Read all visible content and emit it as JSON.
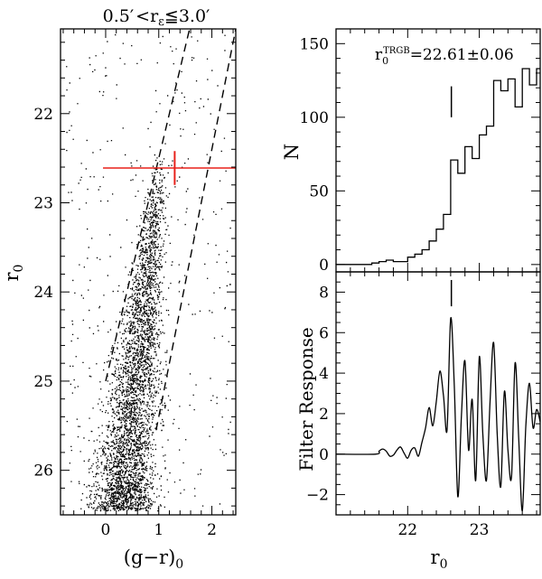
{
  "chart_data": [
    {
      "type": "scatter",
      "panel": "cmd",
      "title_parts": {
        "lo": "0.5′",
        "lt": "<",
        "r": "r",
        "sub": "ε",
        "le": "≦",
        "hi": "3.0′"
      },
      "xlabel": {
        "main": "(g−r)",
        "sub": "0"
      },
      "ylabel": {
        "main": "r",
        "sub": "0"
      },
      "xlim": [
        -0.85,
        2.45
      ],
      "ylim": [
        26.5,
        21.05
      ],
      "xticks": [
        0,
        1,
        2
      ],
      "xtick_labels": [
        "0",
        "1",
        "2"
      ],
      "yticks": [
        22,
        23,
        24,
        25,
        26
      ],
      "ytick_labels": [
        "22",
        "23",
        "24",
        "25",
        "26"
      ],
      "n_points": 9000,
      "rgb_locus": {
        "x_at_r22_6": 0.99,
        "x_at_r26": 0.38,
        "x_scatter_bright": 0.09,
        "x_scatter_faint": 0.28
      },
      "dashed_lines": [
        {
          "x": [
            0.0,
            1.58
          ],
          "y": [
            25.0,
            21.05
          ]
        },
        {
          "x": [
            0.95,
            2.45
          ],
          "y": [
            25.55,
            21.05
          ]
        }
      ],
      "trgb_line": {
        "r0": 22.61,
        "x_range": [
          -0.05,
          2.45
        ],
        "color": "#e8201a"
      },
      "trgb_marker": {
        "x": 1.3,
        "r_range": [
          22.42,
          22.8
        ],
        "color": "#e8201a"
      }
    },
    {
      "type": "step",
      "panel": "luminosity-function",
      "ylabel": "N",
      "annotation": {
        "r": "r",
        "sub": "0",
        "sup": "TRGB",
        "value": "=22.61±0.06"
      },
      "xlim": [
        21.0,
        23.85
      ],
      "ylim": [
        -5,
        160
      ],
      "yticks": [
        0,
        50,
        100,
        150
      ],
      "ytick_labels": [
        "0",
        "50",
        "100",
        "150"
      ],
      "bin_edges": [
        21.0,
        21.1,
        21.2,
        21.3,
        21.4,
        21.5,
        21.6,
        21.7,
        21.8,
        21.9,
        22.0,
        22.1,
        22.2,
        22.3,
        22.4,
        22.5,
        22.6,
        22.7,
        22.8,
        22.9,
        23.0,
        23.1,
        23.2,
        23.3,
        23.4,
        23.5,
        23.6,
        23.7,
        23.8,
        23.85
      ],
      "counts": [
        0,
        0,
        0,
        0,
        0,
        1,
        2,
        3,
        2,
        2,
        5,
        7,
        10,
        16,
        24,
        34,
        71,
        62,
        80,
        72,
        88,
        94,
        125,
        118,
        126,
        107,
        133,
        122,
        133
      ],
      "trgb_tick": {
        "r0": 22.61,
        "N_range": [
          100,
          121
        ]
      }
    },
    {
      "type": "line",
      "panel": "filter-response",
      "ylabel": "Filter Response",
      "xlabel": {
        "main": "r",
        "sub": "0"
      },
      "xlim": [
        21.0,
        23.85
      ],
      "ylim": [
        -3.0,
        9.0
      ],
      "xticks": [
        22,
        23
      ],
      "xtick_labels": [
        "22",
        "23"
      ],
      "yticks": [
        -2,
        0,
        2,
        4,
        6,
        8
      ],
      "ytick_labels": [
        "−2",
        "0",
        "2",
        "4",
        "6",
        "8"
      ],
      "x": [
        21.0,
        21.55,
        21.6,
        21.65,
        21.7,
        21.75,
        21.8,
        21.85,
        21.9,
        21.95,
        22.0,
        22.05,
        22.1,
        22.15,
        22.2,
        22.25,
        22.3,
        22.35,
        22.4,
        22.45,
        22.5,
        22.55,
        22.6,
        22.65,
        22.7,
        22.75,
        22.8,
        22.85,
        22.9,
        22.95,
        23.0,
        23.05,
        23.1,
        23.15,
        23.2,
        23.25,
        23.3,
        23.35,
        23.4,
        23.45,
        23.5,
        23.55,
        23.6,
        23.65,
        23.7,
        23.75,
        23.8,
        23.85
      ],
      "y": [
        0,
        0,
        0.15,
        0.25,
        0.15,
        -0.1,
        -0.05,
        0.2,
        0.35,
        0.05,
        -0.2,
        0.2,
        0.3,
        -0.1,
        0.6,
        1.3,
        2.3,
        1.4,
        2.6,
        4.1,
        2.9,
        1.2,
        6.7,
        3.5,
        -2.1,
        1.9,
        4.6,
        0.2,
        2.7,
        -1.3,
        4.8,
        0.9,
        -1.3,
        2.6,
        5.5,
        1.0,
        -1.6,
        3.1,
        0.2,
        -1.1,
        4.5,
        0.8,
        -2.8,
        1.4,
        3.5,
        1.3,
        2.2,
        1.6
      ],
      "trgb_tick": {
        "r0": 22.61,
        "y_range": [
          7.3,
          8.6
        ]
      }
    }
  ]
}
